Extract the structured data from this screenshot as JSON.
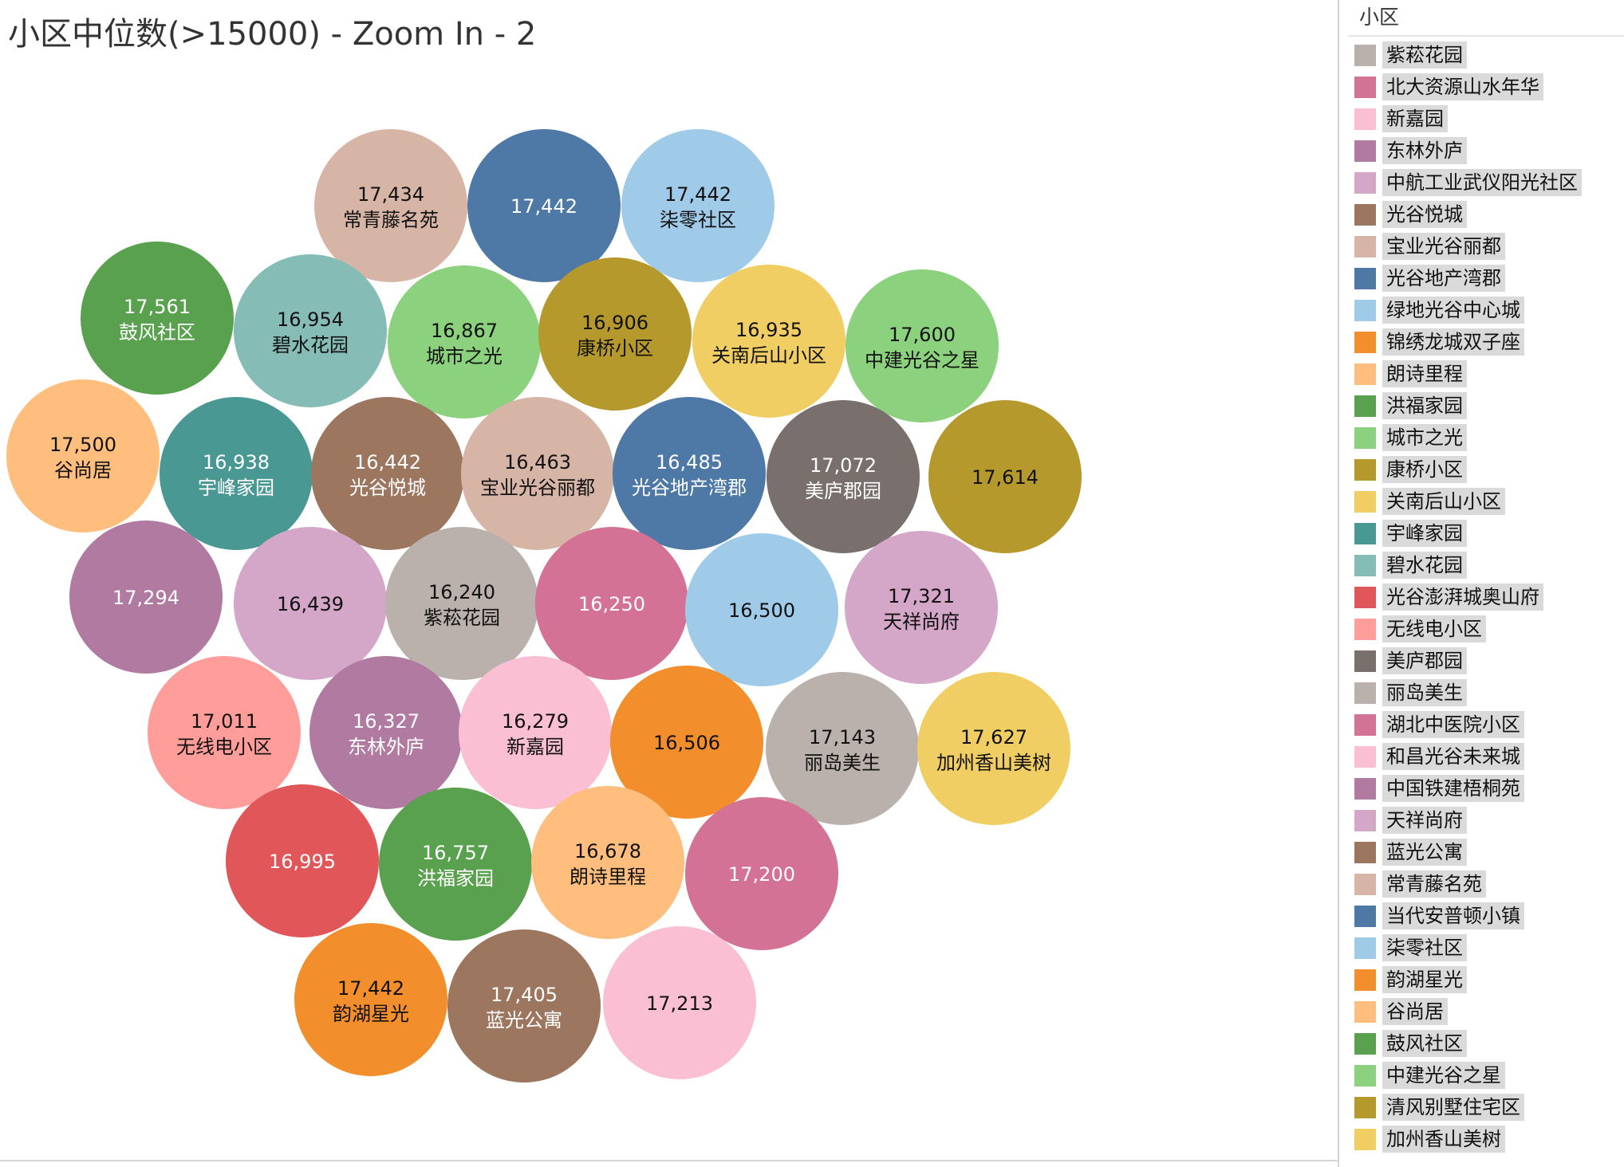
{
  "title": "小区中位数(>15000) - Zoom In - 2",
  "legend": {
    "title": "小区",
    "items": [
      {
        "label": "紫菘花园",
        "color": "#bab0ac"
      },
      {
        "label": "北大资源山水年华",
        "color": "#d37295"
      },
      {
        "label": "新嘉园",
        "color": "#fabfd2"
      },
      {
        "label": "东林外庐",
        "color": "#b07aa1"
      },
      {
        "label": "中航工业武仪阳光社区",
        "color": "#d4a6c8"
      },
      {
        "label": "光谷悦城",
        "color": "#9d7660"
      },
      {
        "label": "宝业光谷丽都",
        "color": "#d7b5a6"
      },
      {
        "label": "光谷地产湾郡",
        "color": "#4e79a7"
      },
      {
        "label": "绿地光谷中心城",
        "color": "#a0cbe8"
      },
      {
        "label": "锦绣龙城双子座",
        "color": "#f28e2b"
      },
      {
        "label": "朗诗里程",
        "color": "#ffbe7d"
      },
      {
        "label": "洪福家园",
        "color": "#59a14f"
      },
      {
        "label": "城市之光",
        "color": "#8cd17d"
      },
      {
        "label": "康桥小区",
        "color": "#b6992d"
      },
      {
        "label": "关南后山小区",
        "color": "#f1ce63"
      },
      {
        "label": "宇峰家园",
        "color": "#499894"
      },
      {
        "label": "碧水花园",
        "color": "#86bcb6"
      },
      {
        "label": "光谷澎湃城奥山府",
        "color": "#e15759"
      },
      {
        "label": "无线电小区",
        "color": "#ff9d9a"
      },
      {
        "label": "美庐郡园",
        "color": "#79706e"
      },
      {
        "label": "丽岛美生",
        "color": "#bab0ac"
      },
      {
        "label": "湖北中医院小区",
        "color": "#d37295"
      },
      {
        "label": "和昌光谷未来城",
        "color": "#fabfd2"
      },
      {
        "label": "中国铁建梧桐苑",
        "color": "#b07aa1"
      },
      {
        "label": "天祥尚府",
        "color": "#d4a6c8"
      },
      {
        "label": "蓝光公寓",
        "color": "#9d7660"
      },
      {
        "label": "常青藤名苑",
        "color": "#d7b5a6"
      },
      {
        "label": "当代安普顿小镇",
        "color": "#4e79a7"
      },
      {
        "label": "柒零社区",
        "color": "#a0cbe8"
      },
      {
        "label": "韵湖星光",
        "color": "#f28e2b"
      },
      {
        "label": "谷尚居",
        "color": "#ffbe7d"
      },
      {
        "label": "鼓风社区",
        "color": "#59a14f"
      },
      {
        "label": "中建光谷之星",
        "color": "#8cd17d"
      },
      {
        "label": "清风别墅住宅区",
        "color": "#b6992d"
      },
      {
        "label": "加州香山美树",
        "color": "#f1ce63"
      }
    ]
  },
  "chart_data": {
    "type": "bubble",
    "value_format": "thousands-separator",
    "bubbles": [
      {
        "name": "常青藤名苑",
        "value": 17434,
        "color": "#d7b5a6",
        "text_color": "#111111"
      },
      {
        "name": "当代安普顿小镇",
        "value": 17442,
        "color": "#4e79a7",
        "text_color": "#ffffff",
        "label_visible": false
      },
      {
        "name": "柒零社区",
        "value": 17442,
        "color": "#a0cbe8",
        "text_color": "#111111"
      },
      {
        "name": "鼓风社区",
        "value": 17561,
        "color": "#59a14f",
        "text_color": "#ffffff"
      },
      {
        "name": "碧水花园",
        "value": 16954,
        "color": "#86bcb6",
        "text_color": "#111111"
      },
      {
        "name": "城市之光",
        "value": 16867,
        "color": "#8cd17d",
        "text_color": "#111111"
      },
      {
        "name": "康桥小区",
        "value": 16906,
        "color": "#b6992d",
        "text_color": "#111111"
      },
      {
        "name": "关南后山小区",
        "value": 16935,
        "color": "#f1ce63",
        "text_color": "#111111"
      },
      {
        "name": "中建光谷之星",
        "value": 17600,
        "color": "#8cd17d",
        "text_color": "#111111"
      },
      {
        "name": "谷尚居",
        "value": 17500,
        "color": "#ffbe7d",
        "text_color": "#111111"
      },
      {
        "name": "宇峰家园",
        "value": 16938,
        "color": "#499894",
        "text_color": "#ffffff"
      },
      {
        "name": "光谷悦城",
        "value": 16442,
        "color": "#9d7660",
        "text_color": "#ffffff"
      },
      {
        "name": "宝业光谷丽都",
        "value": 16463,
        "color": "#d7b5a6",
        "text_color": "#111111"
      },
      {
        "name": "光谷地产湾郡",
        "value": 16485,
        "color": "#4e79a7",
        "text_color": "#ffffff"
      },
      {
        "name": "美庐郡园",
        "value": 17072,
        "color": "#79706e",
        "text_color": "#ffffff"
      },
      {
        "name": "清风别墅住宅区",
        "value": 17614,
        "color": "#b6992d",
        "text_color": "#111111",
        "label_visible": false
      },
      {
        "name": "中国铁建梧桐苑",
        "value": 17294,
        "color": "#b07aa1",
        "text_color": "#ffffff",
        "label_visible": false
      },
      {
        "name": "中航工业武仪阳光社区",
        "value": 16439,
        "color": "#d4a6c8",
        "text_color": "#111111",
        "label_visible": false
      },
      {
        "name": "紫菘花园",
        "value": 16240,
        "color": "#bab0ac",
        "text_color": "#111111"
      },
      {
        "name": "北大资源山水年华",
        "value": 16250,
        "color": "#d37295",
        "text_color": "#ffffff",
        "label_visible": false
      },
      {
        "name": "绿地光谷中心城",
        "value": 16500,
        "color": "#a0cbe8",
        "text_color": "#111111",
        "label_visible": false
      },
      {
        "name": "天祥尚府",
        "value": 17321,
        "color": "#d4a6c8",
        "text_color": "#111111"
      },
      {
        "name": "无线电小区",
        "value": 17011,
        "color": "#ff9d9a",
        "text_color": "#111111"
      },
      {
        "name": "东林外庐",
        "value": 16327,
        "color": "#b07aa1",
        "text_color": "#ffffff"
      },
      {
        "name": "新嘉园",
        "value": 16279,
        "color": "#fabfd2",
        "text_color": "#111111"
      },
      {
        "name": "锦绣龙城双子座",
        "value": 16506,
        "color": "#f28e2b",
        "text_color": "#111111",
        "label_visible": false
      },
      {
        "name": "丽岛美生",
        "value": 17143,
        "color": "#bab0ac",
        "text_color": "#111111"
      },
      {
        "name": "加州香山美树",
        "value": 17627,
        "color": "#f1ce63",
        "text_color": "#111111"
      },
      {
        "name": "光谷澎湃城奥山府",
        "value": 16995,
        "color": "#e15759",
        "text_color": "#ffffff",
        "label_visible": false
      },
      {
        "name": "洪福家园",
        "value": 16757,
        "color": "#59a14f",
        "text_color": "#ffffff"
      },
      {
        "name": "朗诗里程",
        "value": 16678,
        "color": "#ffbe7d",
        "text_color": "#111111"
      },
      {
        "name": "湖北中医院小区",
        "value": 17200,
        "color": "#d37295",
        "text_color": "#ffffff",
        "label_visible": false
      },
      {
        "name": "韵湖星光",
        "value": 17442,
        "color": "#f28e2b",
        "text_color": "#111111"
      },
      {
        "name": "蓝光公寓",
        "value": 17405,
        "color": "#9d7660",
        "text_color": "#ffffff"
      },
      {
        "name": "和昌光谷未来城",
        "value": 17213,
        "color": "#fabfd2",
        "text_color": "#111111",
        "label_visible": false
      }
    ]
  }
}
